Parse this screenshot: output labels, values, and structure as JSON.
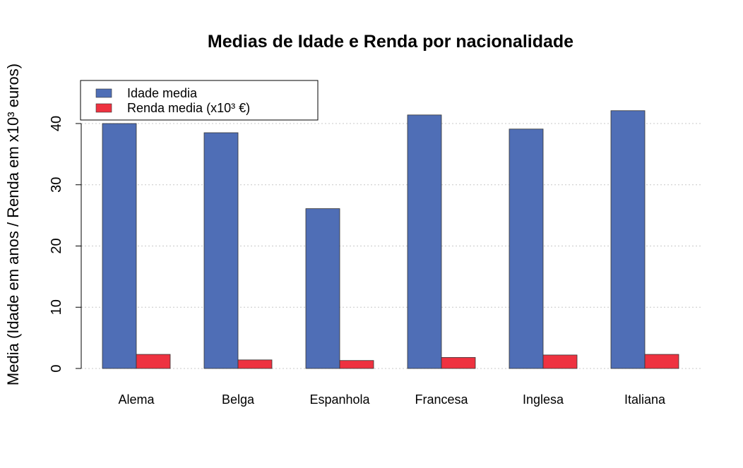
{
  "chart_data": {
    "type": "bar",
    "title": "Medias de Idade e Renda por nacionalidade",
    "xlabel": "",
    "ylabel": "Media (Idade em anos / Renda em x10³ euros)",
    "categories": [
      "Alema",
      "Belga",
      "Espanhola",
      "Francesa",
      "Inglesa",
      "Italiana"
    ],
    "series": [
      {
        "name": "Idade media",
        "values": [
          40.0,
          38.5,
          26.1,
          41.4,
          39.1,
          42.1
        ],
        "color": "#4f6eb6"
      },
      {
        "name": "Renda media (x10³ €)",
        "values": [
          2.3,
          1.4,
          1.3,
          1.8,
          2.2,
          2.3
        ],
        "color": "#ee3240"
      }
    ],
    "ylim": [
      0,
      40
    ],
    "yticks": [
      "0",
      "10",
      "20",
      "30",
      "40"
    ],
    "grid": true,
    "legend_position": "top-left"
  }
}
